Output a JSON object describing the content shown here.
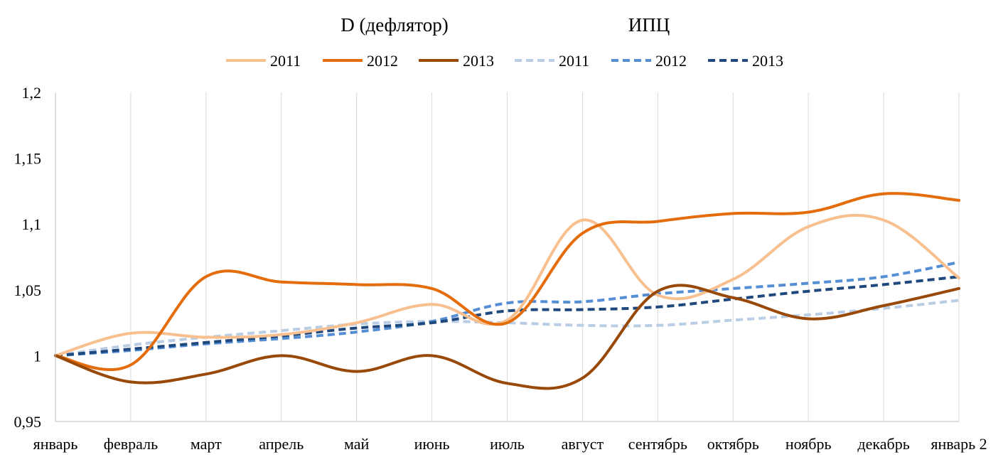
{
  "chart_data": {
    "type": "line",
    "group_titles": [
      "D (дефлятор)",
      "ИПЦ"
    ],
    "categories": [
      "январь",
      "февраль",
      "март",
      "апрель",
      "май",
      "июнь",
      "июль",
      "август",
      "сентябрь",
      "октябрь",
      "ноябрь",
      "декабрь",
      "январь 2"
    ],
    "ylim": [
      0.95,
      1.2
    ],
    "yticks": [
      {
        "value": 0.95,
        "label": "0,95"
      },
      {
        "value": 1.0,
        "label": "1"
      },
      {
        "value": 1.05,
        "label": "1,05"
      },
      {
        "value": 1.1,
        "label": "1,1"
      },
      {
        "value": 1.15,
        "label": "1,15"
      },
      {
        "value": 1.2,
        "label": "1,2"
      }
    ],
    "grid": "vertical",
    "legend_position": "top",
    "series": [
      {
        "name": "2011",
        "group": "D (дефлятор)",
        "color": "#f8bf8f",
        "dashed": false,
        "values": [
          1.0,
          1.017,
          1.014,
          1.016,
          1.025,
          1.039,
          1.027,
          1.103,
          1.046,
          1.058,
          1.098,
          1.103,
          1.059
        ]
      },
      {
        "name": "2012",
        "group": "D (дефлятор)",
        "color": "#e46c0a",
        "dashed": false,
        "values": [
          1.0,
          0.993,
          1.06,
          1.056,
          1.054,
          1.051,
          1.025,
          1.093,
          1.102,
          1.108,
          1.109,
          1.123,
          1.118
        ]
      },
      {
        "name": "2013",
        "group": "D (дефлятор)",
        "color": "#984807",
        "dashed": false,
        "values": [
          1.0,
          0.98,
          0.986,
          1.0,
          0.988,
          1.0,
          0.979,
          0.983,
          1.049,
          1.044,
          1.028,
          1.038,
          1.051
        ]
      },
      {
        "name": "2011",
        "group": "ИПЦ",
        "color": "#b9cde5",
        "dashed": true,
        "values": [
          1.0,
          1.008,
          1.014,
          1.019,
          1.024,
          1.026,
          1.025,
          1.023,
          1.023,
          1.027,
          1.031,
          1.036,
          1.042
        ]
      },
      {
        "name": "2012",
        "group": "ИПЦ",
        "color": "#558ed5",
        "dashed": true,
        "values": [
          1.0,
          1.004,
          1.009,
          1.013,
          1.018,
          1.026,
          1.04,
          1.041,
          1.047,
          1.051,
          1.055,
          1.06,
          1.071
        ]
      },
      {
        "name": "2013",
        "group": "ИПЦ",
        "color": "#1f497d",
        "dashed": true,
        "values": [
          1.0,
          1.005,
          1.01,
          1.015,
          1.021,
          1.025,
          1.034,
          1.035,
          1.037,
          1.043,
          1.049,
          1.054,
          1.06
        ]
      }
    ]
  }
}
